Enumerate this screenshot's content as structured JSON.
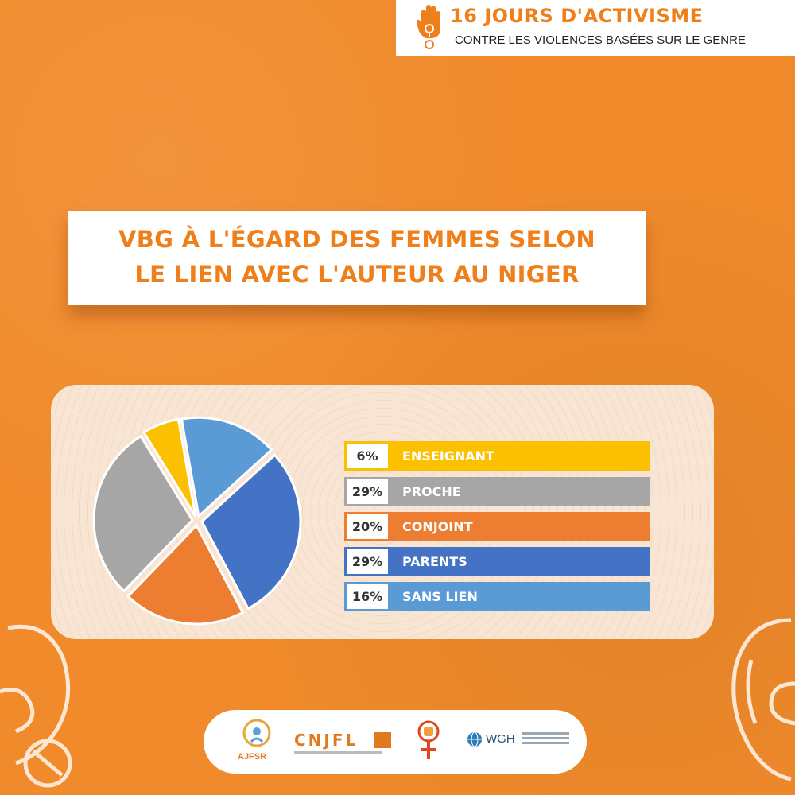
{
  "campaign": {
    "title": "16 JOURS  D'ACTIVISME",
    "subtitle": "CONTRE LES VIOLENCES BASÉES SUR LE GENRE"
  },
  "chart_data": {
    "type": "pie",
    "title_lines": [
      "VBG À L'ÉGARD DES FEMMES SELON",
      "LE LIEN AVEC L'AUTEUR AU NIGER"
    ],
    "slices": [
      {
        "label": "ENSEIGNANT",
        "value": 6,
        "value_label": "6%",
        "color": "#fbc000"
      },
      {
        "label": "PROCHE",
        "value": 29,
        "value_label": "29%",
        "color": "#a6a6a6"
      },
      {
        "label": "CONJOINT",
        "value": 20,
        "value_label": "20%",
        "color": "#ed7d31"
      },
      {
        "label": "PARENTS",
        "value": 29,
        "value_label": "29%",
        "color": "#4472c4"
      },
      {
        "label": "SANS LIEN",
        "value": 16,
        "value_label": "16%",
        "color": "#5b9bd5"
      }
    ],
    "legend_placement": "right"
  },
  "sponsors": {
    "ajfsr": "AJFSR",
    "cnjfl": "CNJFL",
    "wgh": "WGH"
  },
  "colors": {
    "background": "#f08a2b",
    "accent": "#ef7f1a"
  }
}
